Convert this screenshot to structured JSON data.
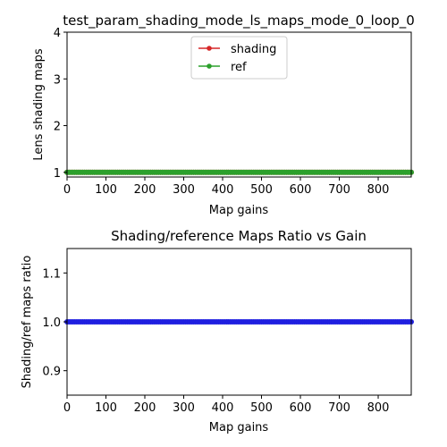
{
  "colors": {
    "shading": "#d62728",
    "ref": "#2ca02c",
    "ratio": "#1f1fe0",
    "axes": "#000000",
    "legend_border": "#cccccc"
  },
  "chart_data": [
    {
      "type": "line",
      "title": "test_param_shading_mode_ls_maps_mode_0_loop_0",
      "xlabel": "Map gains",
      "ylabel": "Lens shading maps",
      "xlim": [
        0,
        885
      ],
      "ylim": [
        0.9,
        4.0
      ],
      "xticks": [
        0,
        100,
        200,
        300,
        400,
        500,
        600,
        700,
        800
      ],
      "xtick_labels": [
        "0",
        "100",
        "200",
        "300",
        "400",
        "500",
        "600",
        "700",
        "800"
      ],
      "yticks": [
        1,
        2,
        3,
        4
      ],
      "ytick_labels": [
        "1",
        "2",
        "3",
        "4"
      ],
      "legend_position": "top-center",
      "grid": false,
      "x_range": [
        0,
        885
      ],
      "x_step": 5,
      "series": [
        {
          "name": "shading",
          "color": "#d62728",
          "constant_y": 1.0
        },
        {
          "name": "ref",
          "color": "#2ca02c",
          "constant_y": 1.0
        }
      ]
    },
    {
      "type": "line",
      "title": "Shading/reference Maps Ratio vs Gain",
      "xlabel": "Map gains",
      "ylabel": "Shading/ref maps ratio",
      "xlim": [
        0,
        885
      ],
      "ylim": [
        0.85,
        1.15
      ],
      "xticks": [
        0,
        100,
        200,
        300,
        400,
        500,
        600,
        700,
        800
      ],
      "xtick_labels": [
        "0",
        "100",
        "200",
        "300",
        "400",
        "500",
        "600",
        "700",
        "800"
      ],
      "yticks": [
        0.9,
        1.0,
        1.1
      ],
      "ytick_labels": [
        "0.9",
        "1.0",
        "1.1"
      ],
      "grid": false,
      "x_range": [
        0,
        885
      ],
      "x_step": 5,
      "series": [
        {
          "color": "#1f1fe0",
          "constant_y": 1.0
        }
      ]
    }
  ]
}
